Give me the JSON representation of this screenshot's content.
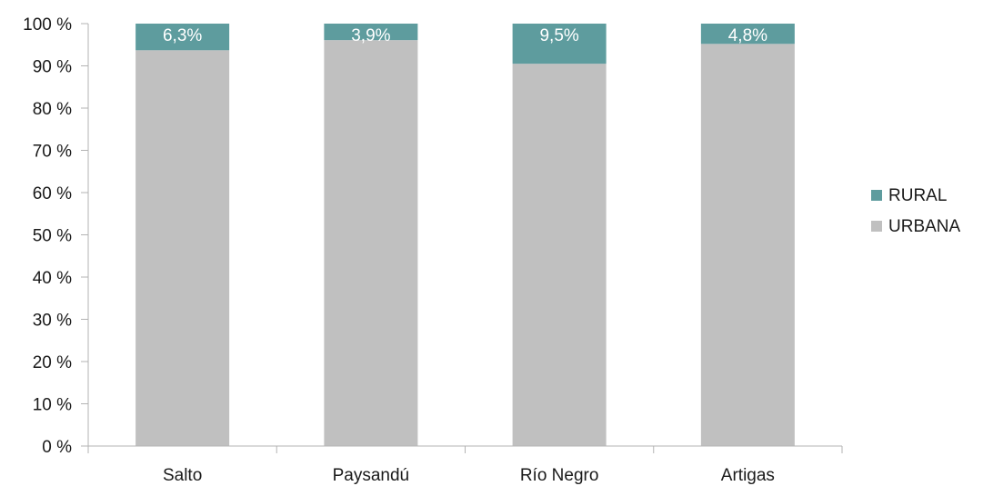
{
  "chart_data": {
    "type": "bar",
    "stacked": true,
    "categories": [
      "Salto",
      "Paysandú",
      "Río Negro",
      "Artigas"
    ],
    "series": [
      {
        "name": "URBANA",
        "values": [
          93.7,
          96.1,
          90.5,
          95.2
        ],
        "color": "#c0c0c0"
      },
      {
        "name": "RURAL",
        "values": [
          6.3,
          3.9,
          9.5,
          4.8
        ],
        "color": "#5e9c9e",
        "data_labels": [
          "6,3%",
          "3,9%",
          "9,5%",
          "4,8%"
        ]
      }
    ],
    "yticks": [
      "0 %",
      "10 %",
      "20 %",
      "30 %",
      "40 %",
      "50 %",
      "60 %",
      "70 %",
      "80 %",
      "90 %",
      "100 %"
    ],
    "ylim": [
      0,
      100
    ],
    "legend_position": "right",
    "legend": [
      "RURAL",
      "URBANA"
    ],
    "grid": false
  }
}
